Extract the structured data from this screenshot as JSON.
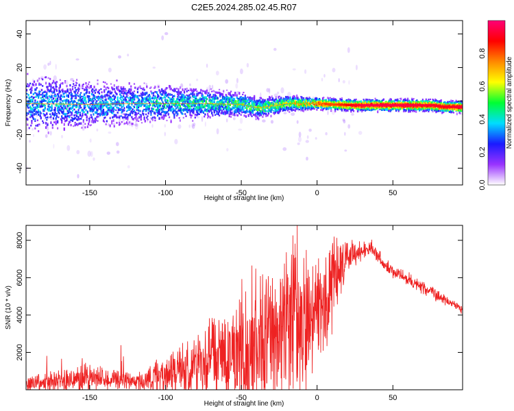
{
  "title": "C2E5.2024.285.02.45.R07",
  "chart_data": [
    {
      "type": "heatmap",
      "xlabel": "Height of straight line (km)",
      "ylabel": "Frequency (Hz)",
      "xlim": [
        -192,
        96
      ],
      "ylim": [
        -50,
        48
      ],
      "xticks": [
        -150,
        -100,
        -50,
        0,
        50
      ],
      "yticks": [
        -40,
        -20,
        0,
        20,
        40
      ],
      "colorbar": {
        "label": "Normalized spectral amplitude",
        "range": [
          0,
          1
        ],
        "ticks": [
          "0.0",
          "0.2",
          "0.4",
          "0.6",
          "0.8"
        ],
        "tick_values": [
          0,
          0.2,
          0.4,
          0.6,
          0.8
        ],
        "colors": [
          "#ffffff",
          "#9933ff",
          "#1a1aff",
          "#00ddff",
          "#00ff33",
          "#ffff00",
          "#ff8800",
          "#ff0000",
          "#ff0077"
        ]
      },
      "ridge_frequency": {
        "x": [
          -192,
          -150,
          -125,
          -100,
          -75,
          -50,
          -40,
          -30,
          -20,
          -10,
          0,
          10,
          25,
          50,
          75,
          85,
          96
        ],
        "y": [
          -1.5,
          -2.0,
          -1.5,
          -1.5,
          -1.5,
          -2.0,
          -4.0,
          -3.0,
          -1.5,
          -1.5,
          -1.5,
          -2.0,
          -2.5,
          -2.5,
          -2.5,
          -3.5,
          -3.5
        ]
      },
      "ridge_amplitude": {
        "x": [
          -192,
          -130,
          -100,
          -60,
          -40,
          -20,
          0,
          10,
          30,
          60,
          85,
          96
        ],
        "y": [
          0.4,
          0.38,
          0.45,
          0.5,
          0.55,
          0.65,
          0.85,
          0.8,
          0.95,
          0.95,
          0.9,
          0.95
        ]
      }
    },
    {
      "type": "line",
      "xlabel": "Height of straight line (km)",
      "ylabel": "SNR (10 * v/v)",
      "xlim": [
        -192,
        96
      ],
      "ylim": [
        0,
        8800
      ],
      "xticks": [
        -150,
        -100,
        -50,
        0,
        50
      ],
      "yticks": [
        2000,
        4000,
        6000,
        8000
      ],
      "series": [
        {
          "color": "#ee2222",
          "baseline": {
            "x": [
              -192,
              -170,
              -150,
              -130,
              -120,
              -110,
              -100,
              -90,
              -80,
              -70,
              -60,
              -50,
              -40,
              -30,
              -20,
              -15,
              -10,
              -5,
              0,
              5,
              10,
              15,
              20,
              25,
              30,
              35,
              40,
              45,
              50,
              60,
              70,
              80,
              90,
              96
            ],
            "y": [
              250,
              400,
              600,
              500,
              400,
              500,
              700,
              900,
              1100,
              1300,
              1600,
              1800,
              2200,
              2500,
              3000,
              3300,
              3500,
              3700,
              4000,
              4600,
              5400,
              6200,
              7100,
              7300,
              7400,
              7600,
              7100,
              6600,
              6300,
              5900,
              5400,
              5000,
              4600,
              4300
            ]
          },
          "spread": {
            "x": [
              -192,
              -150,
              -120,
              -100,
              -80,
              -60,
              -50,
              -40,
              -30,
              -20,
              -10,
              0,
              10,
              20,
              30,
              40,
              50,
              96
            ],
            "y": [
              500,
              700,
              400,
              1200,
              1900,
              2600,
              3500,
              3800,
              4000,
              4600,
              4700,
              3000,
              2600,
              900,
              600,
              400,
              350,
              300
            ]
          }
        }
      ]
    }
  ]
}
